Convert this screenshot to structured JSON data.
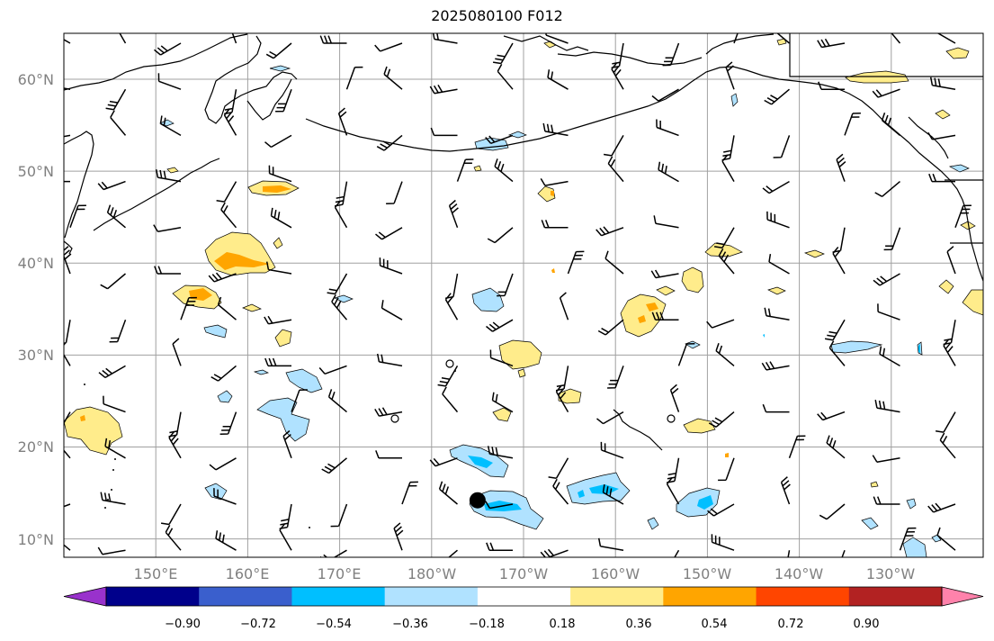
{
  "title": "2025080100 F012",
  "map": {
    "extent": {
      "lon_min": 140,
      "lon_max": 240,
      "lat_min": 8,
      "lat_max": 65
    },
    "lat_labels": [
      {
        "lat": 60,
        "text": "60°N"
      },
      {
        "lat": 50,
        "text": "50°N"
      },
      {
        "lat": 40,
        "text": "40°N"
      },
      {
        "lat": 30,
        "text": "30°N"
      },
      {
        "lat": 20,
        "text": "20°N"
      },
      {
        "lat": 10,
        "text": "10°N"
      }
    ],
    "lon_labels": [
      {
        "lon": 150,
        "text": "150°E"
      },
      {
        "lon": 160,
        "text": "160°E"
      },
      {
        "lon": 170,
        "text": "170°E"
      },
      {
        "lon": 180,
        "text": "180°W"
      },
      {
        "lon": 190,
        "text": "170°W"
      },
      {
        "lon": 200,
        "text": "160°W"
      },
      {
        "lon": 210,
        "text": "150°W"
      },
      {
        "lon": 220,
        "text": "140°W"
      },
      {
        "lon": 230,
        "text": "130°W"
      }
    ],
    "gridlines": true,
    "marker": {
      "lon": 185,
      "lat": 14.2,
      "color": "#000000"
    }
  },
  "colorbar": {
    "colors": [
      "#9932cc",
      "#00008b",
      "#3a5fcd",
      "#00bfff",
      "#b0e2ff",
      "#ffffff",
      "#ffec8b",
      "#ffa500",
      "#ff4500",
      "#b22222",
      "#ff82ab"
    ],
    "labels": [
      "−0.90",
      "−0.72",
      "−0.54",
      "−0.36",
      "−0.18",
      "0.18",
      "0.36",
      "0.54",
      "0.72",
      "0.90"
    ]
  }
}
